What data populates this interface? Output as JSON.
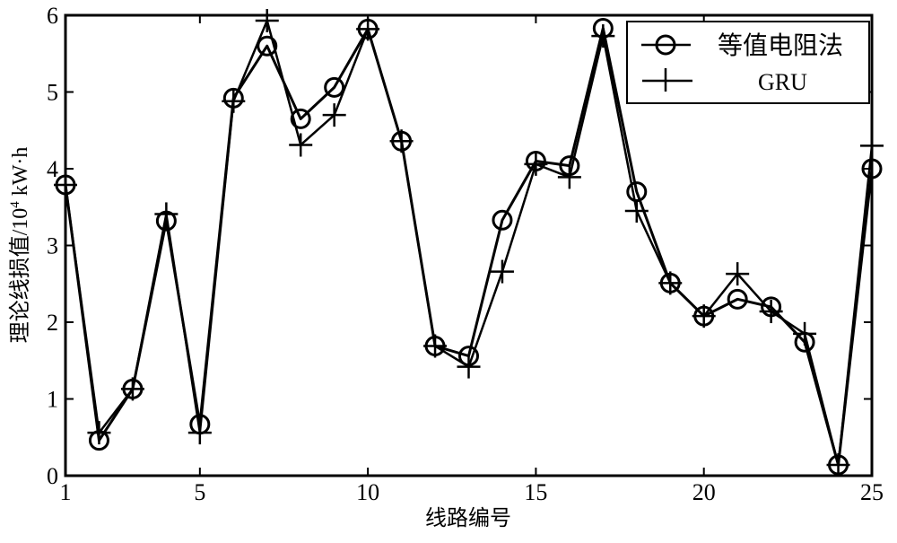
{
  "chart_data": {
    "type": "line",
    "title": "",
    "xlabel": "线路编号",
    "ylabel": "理论线损值/10",
    "ylabel_sup": "4",
    "ylabel_unit": " kW·h",
    "xlim": [
      1,
      25
    ],
    "ylim": [
      0,
      6
    ],
    "xticks": [
      1,
      5,
      10,
      15,
      20,
      25
    ],
    "yticks": [
      0,
      1,
      2,
      3,
      4,
      5,
      6
    ],
    "grid": false,
    "legend_position": "top-right",
    "x": [
      1,
      2,
      3,
      4,
      5,
      6,
      7,
      8,
      9,
      10,
      11,
      12,
      13,
      14,
      15,
      16,
      17,
      18,
      19,
      20,
      21,
      22,
      23,
      24,
      25
    ],
    "series": [
      {
        "name": "等值电阻法",
        "marker": "circle",
        "color": "#000000",
        "values": [
          3.79,
          0.46,
          1.13,
          3.32,
          0.67,
          4.92,
          5.6,
          4.65,
          5.06,
          5.82,
          4.36,
          1.69,
          1.56,
          3.33,
          4.1,
          4.04,
          5.83,
          3.7,
          2.51,
          2.08,
          2.3,
          2.2,
          1.74,
          0.14,
          4.0
        ]
      },
      {
        "name": "GRU",
        "marker": "plus",
        "color": "#000000",
        "values": [
          3.79,
          0.56,
          1.13,
          3.41,
          0.56,
          4.88,
          5.93,
          4.31,
          4.7,
          5.82,
          4.36,
          1.69,
          1.42,
          2.66,
          4.06,
          3.89,
          5.73,
          3.45,
          2.51,
          2.08,
          2.63,
          2.14,
          1.85,
          0.14,
          4.3
        ]
      }
    ]
  }
}
